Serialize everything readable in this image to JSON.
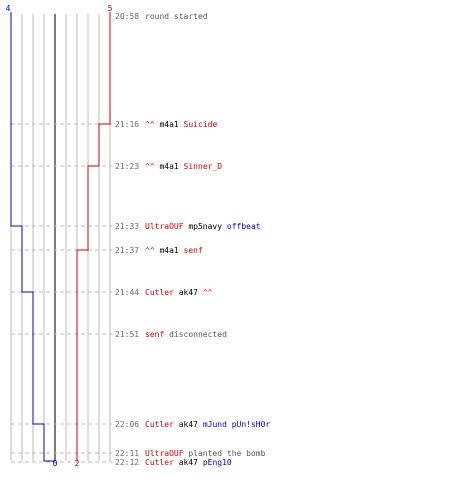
{
  "colors": {
    "blue_team": "#0000cc",
    "red_team": "#cc0000",
    "grid": "#bbbbbb",
    "center": "#7a7a7a",
    "time": "#6b6b6b",
    "gray_text": "#555555"
  },
  "counts": {
    "blue_start": "4",
    "red_start": "5",
    "blue_end": "0",
    "red_end": "2"
  },
  "events": [
    {
      "time": "20:58",
      "parts": [
        {
          "text": "round started",
          "color": "gray"
        }
      ]
    },
    {
      "time": "21:16",
      "parts": [
        {
          "text": "^^",
          "color": "red"
        },
        {
          "text": " m4a1 ",
          "color": "black"
        },
        {
          "text": "Suicide",
          "color": "red"
        }
      ]
    },
    {
      "time": "21:23",
      "parts": [
        {
          "text": "^^",
          "color": "red"
        },
        {
          "text": " m4a1 ",
          "color": "black"
        },
        {
          "text": "Sinner_D",
          "color": "red"
        }
      ]
    },
    {
      "time": "21:33",
      "parts": [
        {
          "text": "UltraOUF",
          "color": "red"
        },
        {
          "text": " mp5navy ",
          "color": "black"
        },
        {
          "text": "offbeat",
          "color": "blue"
        }
      ]
    },
    {
      "time": "21:37",
      "parts": [
        {
          "text": "^^",
          "color": "red"
        },
        {
          "text": " m4a1 ",
          "color": "black"
        },
        {
          "text": "senf",
          "color": "red"
        }
      ]
    },
    {
      "time": "21:44",
      "parts": [
        {
          "text": "Cutler",
          "color": "red"
        },
        {
          "text": " ak47 ",
          "color": "black"
        },
        {
          "text": "^^",
          "color": "red"
        }
      ]
    },
    {
      "time": "21:51",
      "parts": [
        {
          "text": "senf",
          "color": "red"
        },
        {
          "text": " disconnected",
          "color": "gray"
        }
      ]
    },
    {
      "time": "22:06",
      "parts": [
        {
          "text": "Cutler",
          "color": "red"
        },
        {
          "text": " ak47 ",
          "color": "black"
        },
        {
          "text": "mJund pUn!sH0r",
          "color": "blue"
        }
      ]
    },
    {
      "time": "22:11",
      "parts": [
        {
          "text": "UltraOUF",
          "color": "red"
        },
        {
          "text": " planted the bomb",
          "color": "gray"
        }
      ]
    },
    {
      "time": "22:12",
      "parts": [
        {
          "text": "Cutler",
          "color": "red"
        },
        {
          "text": " ak47 ",
          "color": "black"
        },
        {
          "text": "pEng10",
          "color": "blue"
        }
      ]
    }
  ]
}
